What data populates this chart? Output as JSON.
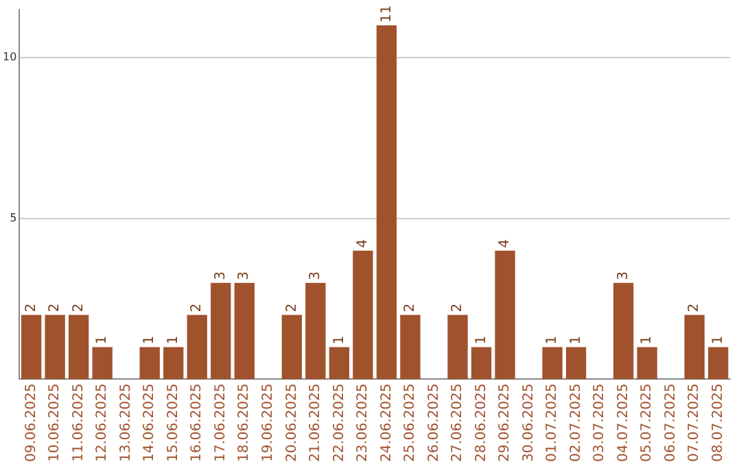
{
  "chart_data": {
    "type": "bar",
    "categories": [
      "09.06.2025",
      "10.06.2025",
      "11.06.2025",
      "12.06.2025",
      "13.06.2025",
      "14.06.2025",
      "15.06.2025",
      "16.06.2025",
      "17.06.2025",
      "18.06.2025",
      "19.06.2025",
      "20.06.2025",
      "21.06.2025",
      "22.06.2025",
      "23.06.2025",
      "24.06.2025",
      "25.06.2025",
      "26.06.2025",
      "27.06.2025",
      "28.06.2025",
      "29.06.2025",
      "30.06.2025",
      "01.07.2025",
      "02.07.2025",
      "03.07.2025",
      "04.07.2025",
      "05.07.2025",
      "06.07.2025",
      "07.07.2025",
      "08.07.2025"
    ],
    "values": [
      2,
      2,
      2,
      1,
      0,
      1,
      1,
      2,
      3,
      3,
      0,
      2,
      3,
      1,
      4,
      11,
      2,
      0,
      2,
      1,
      4,
      0,
      1,
      1,
      0,
      3,
      1,
      0,
      2,
      1
    ],
    "value_labels": [
      "2",
      "2",
      "2",
      "1",
      null,
      "1",
      "1",
      "2",
      "3",
      "3",
      null,
      "2",
      "3",
      "1",
      "4",
      "11",
      "2",
      null,
      "2",
      "1",
      "4",
      null,
      "1",
      "1",
      null,
      "3",
      "1",
      null,
      "2",
      "1"
    ],
    "color": "#a0522d",
    "ylim": [
      0,
      11.5
    ],
    "yticks": [
      5,
      10
    ],
    "grid": "y",
    "legend": false
  }
}
